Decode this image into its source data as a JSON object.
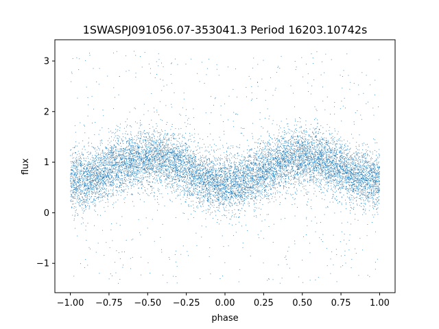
{
  "chart_data": {
    "type": "scatter",
    "title": "1SWASPJ091056.07-353041.3 Period 16203.10742s",
    "xlabel": "phase",
    "ylabel": "flux",
    "xlim": [
      -1.1,
      1.1
    ],
    "ylim": [
      -1.58,
      3.42
    ],
    "x_ticks": [
      -1.0,
      -0.75,
      -0.5,
      -0.25,
      0.0,
      0.25,
      0.5,
      0.75,
      1.0
    ],
    "x_tick_labels": [
      "−1.00",
      "−0.75",
      "−0.50",
      "−0.25",
      "0.00",
      "0.25",
      "0.50",
      "0.75",
      "1.00"
    ],
    "y_ticks": [
      -1,
      0,
      1,
      2,
      3
    ],
    "y_tick_labels": [
      "−1",
      "0",
      "1",
      "2",
      "3"
    ],
    "grid": false,
    "legend": "none",
    "marker_color": "#1f77b4",
    "marker_size": "very small",
    "series": [
      {
        "x_range": [
          -1.0,
          1.0
        ],
        "folded": true,
        "profile_phase": [
          -1.0,
          -0.9,
          -0.8,
          -0.7,
          -0.6,
          -0.5,
          -0.4,
          -0.3,
          -0.2,
          -0.1,
          0.0,
          0.1,
          0.2,
          0.3,
          0.4,
          0.5,
          0.6,
          0.7,
          0.8,
          0.9,
          1.0
        ],
        "profile_flux": [
          0.62,
          0.65,
          0.78,
          0.95,
          1.05,
          1.1,
          1.05,
          0.95,
          0.78,
          0.62,
          0.55,
          0.6,
          0.75,
          0.92,
          1.05,
          1.1,
          1.05,
          0.95,
          0.8,
          0.68,
          0.62
        ],
        "scatter_sigma": 0.28,
        "outlier_range": [
          -1.4,
          3.2
        ],
        "point_count": 12000
      }
    ]
  }
}
